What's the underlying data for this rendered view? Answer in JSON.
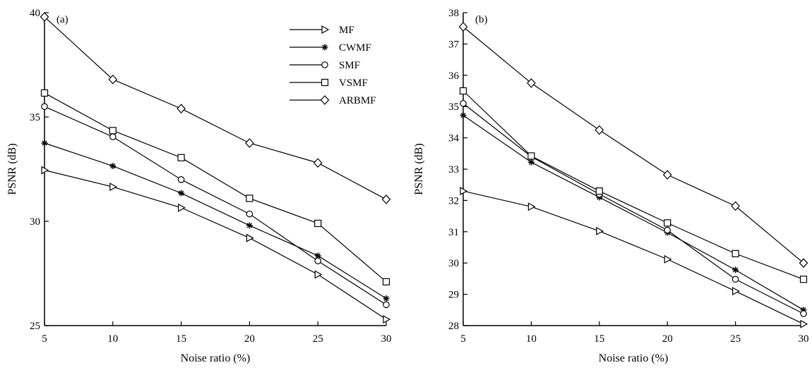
{
  "chart_data": [
    {
      "type": "line",
      "panel_label": "(a)",
      "xlabel": "Noise ratio (%)",
      "ylabel": "PSNR (dB)",
      "x": [
        5,
        10,
        15,
        20,
        25,
        30
      ],
      "xticks": [
        "5",
        "10",
        "15",
        "20",
        "25",
        "30"
      ],
      "yticks": [
        "25",
        "30",
        "35",
        "40"
      ],
      "xlim": [
        5,
        30
      ],
      "ylim": [
        25,
        40
      ],
      "grid": false,
      "legend": "top-right",
      "series": [
        {
          "name": "MF",
          "marker": "triangle-right",
          "values": [
            32.45,
            31.65,
            30.65,
            29.2,
            27.45,
            25.3
          ]
        },
        {
          "name": "CWMF",
          "marker": "asterisk",
          "values": [
            33.75,
            32.65,
            31.35,
            29.8,
            28.35,
            26.3
          ]
        },
        {
          "name": "SMF",
          "marker": "circle",
          "values": [
            35.5,
            34.05,
            32.0,
            30.35,
            28.1,
            26.0
          ]
        },
        {
          "name": "VSMF",
          "marker": "square",
          "values": [
            36.15,
            34.35,
            33.05,
            31.1,
            29.9,
            27.1
          ]
        },
        {
          "name": "ARBMF",
          "marker": "diamond",
          "values": [
            39.8,
            36.8,
            35.4,
            33.75,
            32.8,
            31.05
          ]
        }
      ]
    },
    {
      "type": "line",
      "panel_label": "(b)",
      "xlabel": "Noise ratio (%)",
      "ylabel": "PSNR (dB)",
      "x": [
        5,
        10,
        15,
        20,
        25,
        30
      ],
      "xticks": [
        "5",
        "10",
        "15",
        "20",
        "25",
        "30"
      ],
      "yticks": [
        "28",
        "29",
        "30",
        "31",
        "32",
        "33",
        "34",
        "35",
        "36",
        "37",
        "38"
      ],
      "xlim": [
        5,
        30
      ],
      "ylim": [
        28,
        38
      ],
      "grid": false,
      "legend": "none",
      "series": [
        {
          "name": "MF",
          "marker": "triangle-right",
          "values": [
            32.3,
            31.8,
            31.02,
            30.12,
            29.1,
            28.05
          ]
        },
        {
          "name": "CWMF",
          "marker": "asterisk",
          "values": [
            34.72,
            33.22,
            32.1,
            30.97,
            29.78,
            28.5
          ]
        },
        {
          "name": "SMF",
          "marker": "circle",
          "values": [
            35.1,
            33.4,
            32.2,
            31.05,
            29.48,
            28.38
          ]
        },
        {
          "name": "VSMF",
          "marker": "square",
          "values": [
            35.5,
            33.42,
            32.3,
            31.28,
            30.3,
            29.48
          ]
        },
        {
          "name": "ARBMF",
          "marker": "diamond",
          "values": [
            37.55,
            35.75,
            34.25,
            32.82,
            31.82,
            30.0
          ]
        }
      ]
    }
  ]
}
